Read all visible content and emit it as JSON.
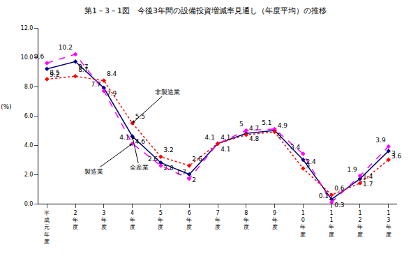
{
  "chart_data": {
    "type": "line",
    "title": "第1－3－1図　今後3年間の設備投資増減率見通し（年度平均）の推移",
    "y_label": "(%)",
    "categories": [
      "平成元年度",
      "2年度",
      "3年度",
      "4年度",
      "5年度",
      "6年度",
      "7年度",
      "8年度",
      "9年度",
      "10年度",
      "11年度",
      "12年度",
      "13年度"
    ],
    "series": [
      {
        "name": "全産業",
        "color": "#000080",
        "line_style": "solid",
        "marker": "diamond",
        "values": [
          9.2,
          9.7,
          7.9,
          4.6,
          2.8,
          2.0,
          4.1,
          4.8,
          5.0,
          3.0,
          0.3,
          1.7,
          3.6
        ]
      },
      {
        "name": "製造業",
        "color": "#ff00ff",
        "line_style": "dash",
        "marker": "diamond",
        "values": [
          9.6,
          10.2,
          7.7,
          4.1,
          2.6,
          1.7,
          4.1,
          5.0,
          5.1,
          3.4,
          0.1,
          1.9,
          3.9
        ]
      },
      {
        "name": "非製造業",
        "color": "#ff0000",
        "line_style": "dot",
        "marker": "diamond",
        "values": [
          8.5,
          8.7,
          8.4,
          5.5,
          3.2,
          2.6,
          4.1,
          4.7,
          4.9,
          2.4,
          0.6,
          1.4,
          3.0
        ]
      }
    ],
    "ylim": [
      0,
      12
    ],
    "yticks": [
      {
        "value": 0,
        "label": "0.0"
      },
      {
        "value": 2,
        "label": "2.0"
      },
      {
        "value": 4,
        "label": "4.0"
      },
      {
        "value": 6,
        "label": "6.0"
      },
      {
        "value": 8,
        "label": "8.0"
      },
      {
        "value": 10,
        "label": "10.0"
      },
      {
        "value": 12,
        "label": "12.0"
      }
    ],
    "grid": false,
    "data_labels": true
  }
}
